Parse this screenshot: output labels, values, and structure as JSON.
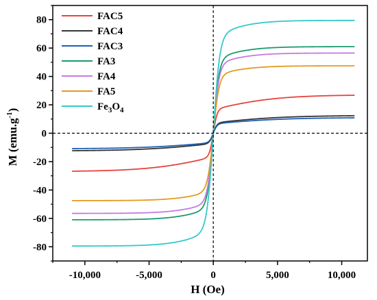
{
  "chart_data": {
    "type": "line",
    "title": "",
    "xlabel": "H (Oe)",
    "ylabel_main": "M (emu.g",
    "ylabel_sup": "-1",
    "ylabel_close": ")",
    "xlim": [
      -12500,
      12000
    ],
    "ylim": [
      -90,
      90
    ],
    "x_ticks": [
      -10000,
      -5000,
      0,
      5000,
      10000
    ],
    "x_tick_labels": [
      "-10,000",
      "-5,000",
      "0",
      "5,000",
      "10,000"
    ],
    "y_ticks": [
      -80,
      -60,
      -40,
      -20,
      0,
      20,
      40,
      60,
      80
    ],
    "y_tick_labels": [
      "-80",
      "-60",
      "-40",
      "-20",
      "0",
      "20",
      "40",
      "60",
      "80"
    ],
    "zero_lines": "dashed",
    "grid": false,
    "legend_position": "top-left",
    "curve_model": {
      "x_range": [
        -11000,
        11000
      ],
      "params_order": [
        "saturation",
        "fast_weight",
        "fast_scale",
        "slow_scale"
      ]
    },
    "series": [
      {
        "name": "FAC5",
        "color": "#e8413c",
        "saturation": 27,
        "params": [
          27,
          0.62,
          300,
          5000
        ]
      },
      {
        "name": "FAC4",
        "color": "#333333",
        "saturation": 12.5,
        "params": [
          12.5,
          0.58,
          300,
          5500
        ]
      },
      {
        "name": "FAC3",
        "color": "#1f5fb4",
        "saturation": 11,
        "params": [
          11,
          0.6,
          300,
          5500
        ]
      },
      {
        "name": "FA3",
        "color": "#1a9a6c",
        "saturation": 61,
        "params": [
          61,
          0.86,
          450,
          3000
        ]
      },
      {
        "name": "FA4",
        "color": "#c47ae0",
        "saturation": 56.5,
        "params": [
          56.5,
          0.86,
          450,
          3000
        ]
      },
      {
        "name": "FA5",
        "color": "#e39a1e",
        "saturation": 47.5,
        "params": [
          47.5,
          0.86,
          450,
          3000
        ]
      },
      {
        "name_main": "Fe",
        "name_sub1": "3",
        "name_mid": "O",
        "name_sub2": "4",
        "color": "#33c9c9",
        "saturation": 79.5,
        "params": [
          79.5,
          0.86,
          500,
          3000
        ]
      }
    ]
  }
}
